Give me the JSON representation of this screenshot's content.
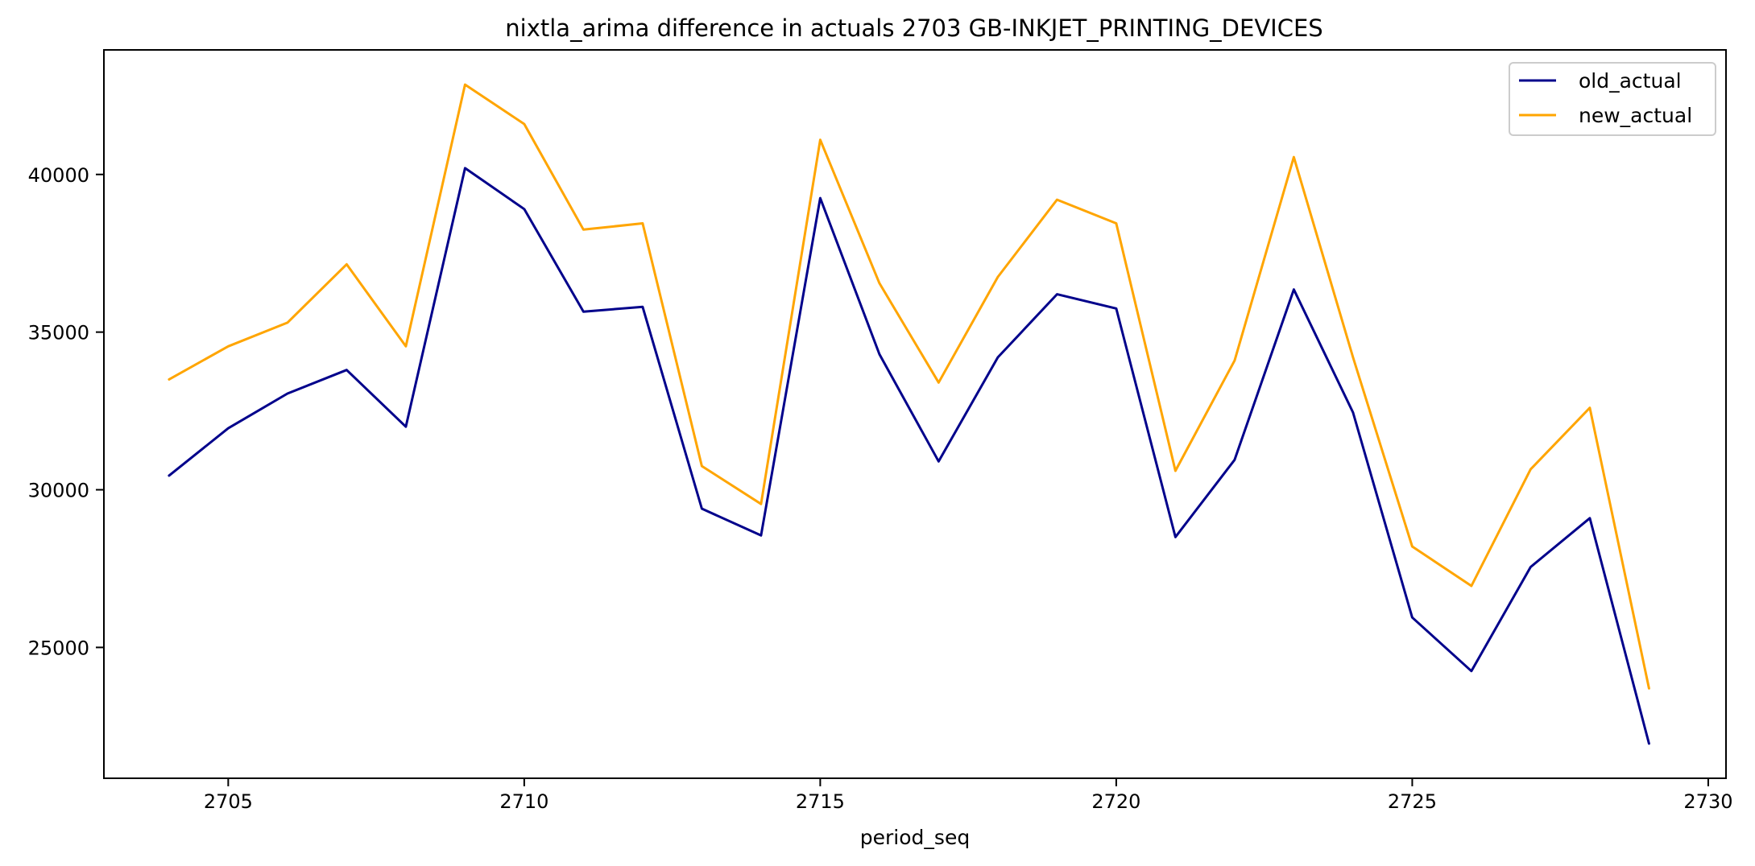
{
  "chart_data": {
    "type": "line",
    "title": "nixtla_arima difference in actuals 2703 GB-INKJET_PRINTING_DEVICES",
    "xlabel": "period_seq",
    "ylabel": "",
    "x": [
      2704,
      2705,
      2706,
      2707,
      2708,
      2709,
      2710,
      2711,
      2712,
      2713,
      2714,
      2715,
      2716,
      2717,
      2718,
      2719,
      2720,
      2721,
      2722,
      2723,
      2724,
      2725,
      2726,
      2727,
      2728,
      2729
    ],
    "series": [
      {
        "name": "old_actual",
        "color": "#00008b",
        "values": [
          30450,
          31950,
          33050,
          33800,
          32000,
          40200,
          38900,
          35650,
          35800,
          29400,
          28550,
          39250,
          34300,
          30900,
          34200,
          36200,
          35750,
          28500,
          30950,
          36350,
          32450,
          25950,
          24250,
          27550,
          29100,
          21950
        ]
      },
      {
        "name": "new_actual",
        "color": "#ffa500",
        "values": [
          33500,
          34550,
          35300,
          37150,
          34550,
          42850,
          41600,
          38250,
          38450,
          30750,
          29550,
          41100,
          36550,
          33400,
          36750,
          39200,
          38450,
          30600,
          34100,
          40550,
          34200,
          28200,
          26950,
          30650,
          32600,
          23700
        ]
      }
    ],
    "xlim": [
      2702.9,
      2730.3
    ],
    "ylim": [
      20850,
      43950
    ],
    "xticks": [
      2705,
      2710,
      2715,
      2720,
      2725,
      2730
    ],
    "yticks": [
      25000,
      30000,
      35000,
      40000
    ],
    "grid": false,
    "legend": "top-right"
  }
}
